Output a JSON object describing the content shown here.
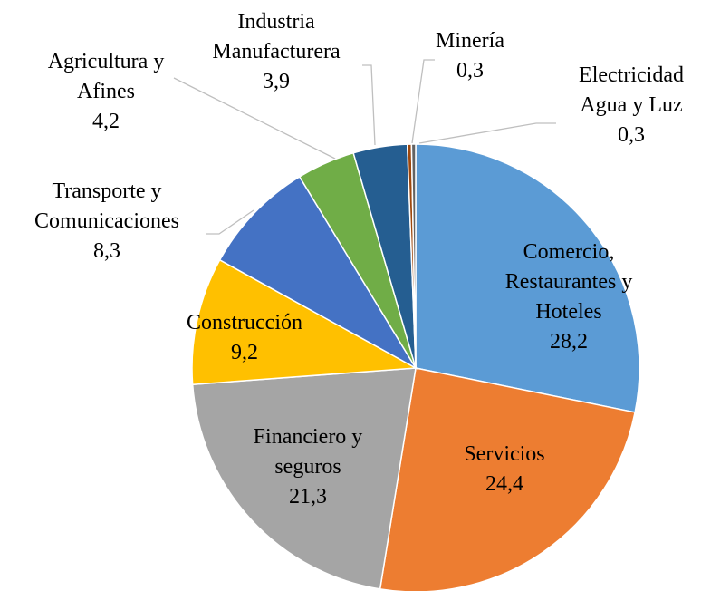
{
  "chart_data": {
    "type": "pie",
    "categories": [
      "Comercio, Restaurantes y Hoteles",
      "Servicios",
      "Financiero y seguros",
      "Construcción",
      "Transporte y Comunicaciones",
      "Agricultura y Afines",
      "Industria Manufacturera",
      "Minería",
      "Electricidad Agua y Luz"
    ],
    "values": [
      28.2,
      24.4,
      21.3,
      9.2,
      8.3,
      4.2,
      3.9,
      0.3,
      0.3
    ],
    "value_labels": [
      "28,2",
      "24,4",
      "21,3",
      "9,2",
      "8,3",
      "4,2",
      "3,9",
      "0,3",
      "0,3"
    ],
    "colors": [
      "#5b9bd5",
      "#ed7d31",
      "#a5a5a5",
      "#ffc000",
      "#4472c4",
      "#70ad47",
      "#255e91",
      "#9e480e",
      "#636363"
    ]
  }
}
